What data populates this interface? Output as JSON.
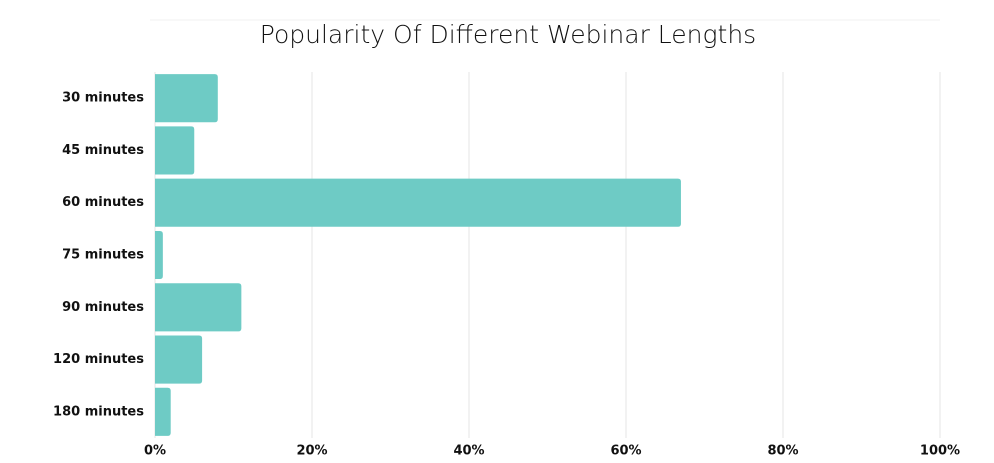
{
  "chart_data": {
    "type": "bar",
    "orientation": "horizontal",
    "title": "Popularity Of Different Webinar Lengths",
    "categories": [
      "30 minutes",
      "45 minutes",
      "60 minutes",
      "75 minutes",
      "90 minutes",
      "120 minutes",
      "180 minutes"
    ],
    "values": [
      8,
      5,
      67,
      1,
      11,
      6,
      2
    ],
    "color": "#6ecbc5",
    "xlim": [
      0,
      100
    ],
    "xticks": [
      {
        "value": 0,
        "label": "0%"
      },
      {
        "value": 20,
        "label": "20%"
      },
      {
        "value": 40,
        "label": "40%"
      },
      {
        "value": 60,
        "label": "60%"
      },
      {
        "value": 80,
        "label": "80%"
      },
      {
        "value": 100,
        "label": "100%"
      }
    ],
    "grid": true
  }
}
